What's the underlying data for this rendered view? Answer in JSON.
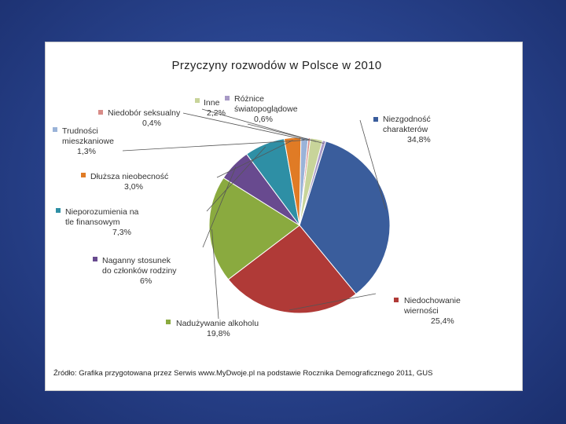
{
  "chart_data": {
    "type": "pie",
    "title": "Przyczyny rozwodów w Polsce w 2010",
    "source": "Źródło:  Grafika przygotowana przez Serwis  www.MyDwoje.pl  na podstawie Rocznika Demograficznego 2011, GUS",
    "slices": [
      {
        "lines": [
          "Niezgodność",
          "charakterów"
        ],
        "value_label": "34,8%",
        "value": 34.8,
        "color": "#3a5d9c"
      },
      {
        "lines": [
          "Niedochowanie",
          "wierności"
        ],
        "value_label": "25,4%",
        "value": 25.4,
        "color": "#b03a37"
      },
      {
        "lines": [
          "Nadużywanie alkoholu"
        ],
        "value_label": "19,8%",
        "value": 19.8,
        "color": "#8aaa3f"
      },
      {
        "lines": [
          "Naganny stosunek",
          "do członków  rodziny"
        ],
        "value_label": "6%",
        "value": 6.0,
        "color": "#684a8f"
      },
      {
        "lines": [
          "Nieporozumienia na",
          "tle finansowym"
        ],
        "value_label": "7,3%",
        "value": 7.3,
        "color": "#2e8fa5"
      },
      {
        "lines": [
          "Dłuższa nieobecność"
        ],
        "value_label": "3,0%",
        "value": 3.0,
        "color": "#e07b25"
      },
      {
        "lines": [
          "Trudności",
          "mieszkaniowe"
        ],
        "value_label": "1,3%",
        "value": 1.3,
        "color": "#9ab3d8"
      },
      {
        "lines": [
          "Niedobór seksualny"
        ],
        "value_label": "0,4%",
        "value": 0.4,
        "color": "#d88c88"
      },
      {
        "lines": [
          "Inne"
        ],
        "value_label": "2,2%",
        "value": 2.2,
        "color": "#c8d49a"
      },
      {
        "lines": [
          "Różnice",
          "światopoglądowe"
        ],
        "value_label": "0,6%",
        "value": 0.6,
        "color": "#a89ac6"
      }
    ]
  }
}
